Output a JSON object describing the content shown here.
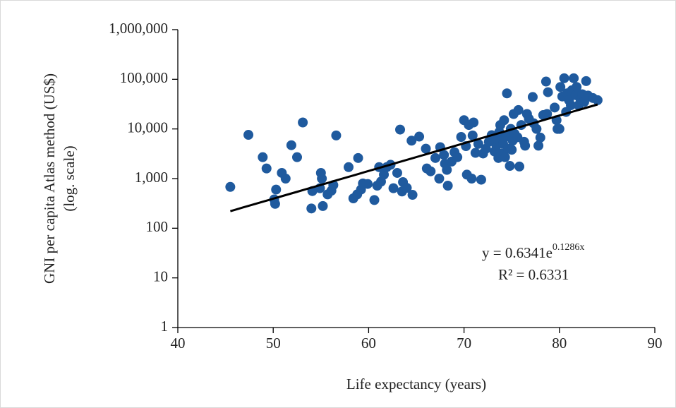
{
  "chart_data": {
    "type": "scatter",
    "xlabel": "Life expectancy (years)",
    "ylabel": "GNI per capita Atlas method (US$)",
    "ylabel_note": "(log. scale)",
    "xlim": [
      40,
      90
    ],
    "xticks": [
      40,
      50,
      60,
      70,
      80,
      90
    ],
    "ylim": [
      1,
      1000000
    ],
    "yticks": [
      1,
      10,
      100,
      {
        "value": 1000,
        "label": "1,000"
      },
      {
        "value": 10000,
        "label": "10,000"
      },
      {
        "value": 100000,
        "label": "100,000"
      },
      {
        "value": 1000000,
        "label": "1,000,000"
      }
    ],
    "log_y": true,
    "color": "#1f5a9e",
    "x": [
      45.5,
      47.4,
      48.9,
      49.3,
      50.1,
      50.2,
      50.3,
      50.9,
      51.3,
      51.9,
      52.5,
      53.1,
      54,
      54.1,
      54.9,
      55,
      55.1,
      55.2,
      55.7,
      56.1,
      56.3,
      56.6,
      57.9,
      58.4,
      58.8,
      58.9,
      59.2,
      59.4,
      59.9,
      60.6,
      60.9,
      61.1,
      61.3,
      61.6,
      61.9,
      62.3,
      62.6,
      63,
      63.3,
      63.5,
      63.6,
      64,
      64.5,
      64.6,
      65.3,
      66,
      66.1,
      66.5,
      67,
      67.4,
      67.5,
      67.9,
      68,
      68.2,
      68.3,
      68.7,
      69,
      69.3,
      69.7,
      70,
      70.2,
      70.3,
      70.5,
      70.8,
      70.9,
      71,
      71.2,
      71.5,
      71.8,
      72,
      72.3,
      72.6,
      72.9,
      73.2,
      73.4,
      73.5,
      73.6,
      73.7,
      73.8,
      73.9,
      74.1,
      74.2,
      74.3,
      74.4,
      74.5,
      74.6,
      74.8,
      74.9,
      75,
      75.1,
      75.2,
      75.3,
      75.6,
      75.7,
      75.8,
      76,
      76.3,
      76.4,
      76.6,
      76.8,
      77.2,
      77.3,
      77.6,
      77.8,
      78,
      78.3,
      78.6,
      78.7,
      78.8,
      79.5,
      79.7,
      79.8,
      80,
      80.1,
      80.3,
      80.5,
      80.7,
      80.8,
      81,
      81.2,
      81.3,
      81.5,
      81.7,
      81.8,
      82,
      82.2,
      82.4,
      82.6,
      82.8,
      83,
      83.5,
      84
    ],
    "y": [
      680,
      7600,
      2700,
      1600,
      380,
      310,
      600,
      1300,
      1000,
      4700,
      2700,
      13500,
      250,
      560,
      640,
      1300,
      1000,
      280,
      480,
      570,
      740,
      7400,
      1700,
      400,
      480,
      2600,
      600,
      800,
      780,
      370,
      720,
      1700,
      870,
      1200,
      1700,
      1900,
      640,
      1300,
      9700,
      550,
      850,
      650,
      5800,
      470,
      7000,
      4000,
      1600,
      1400,
      2600,
      1000,
      4300,
      3000,
      2000,
      1500,
      720,
      2200,
      3400,
      2700,
      6900,
      15000,
      4500,
      1200,
      12000,
      1000,
      7400,
      13500,
      3300,
      5000,
      950,
      3200,
      4000,
      5500,
      7500,
      3500,
      4600,
      6200,
      2600,
      8700,
      12000,
      3200,
      5000,
      15000,
      2700,
      7000,
      52000,
      4000,
      1800,
      10000,
      3800,
      5800,
      20000,
      8000,
      6800,
      24000,
      1750,
      12000,
      5500,
      4600,
      20000,
      16000,
      44000,
      13000,
      10000,
      4600,
      6700,
      19000,
      90000,
      20000,
      55000,
      27000,
      15000,
      10000,
      10000,
      70000,
      45000,
      105000,
      22000,
      52000,
      38000,
      30000,
      60000,
      105000,
      48000,
      70000,
      30000,
      40000,
      50000,
      35000,
      92000,
      47000,
      42000,
      38000
    ],
    "trendline": {
      "coef": 0.6341,
      "rate": 0.1286,
      "x_range": [
        45.5,
        84
      ],
      "color": "#000000",
      "equation": "y = 0.6341e",
      "exponent": "0.1286x",
      "r2_label": "R² = 0.6331"
    }
  }
}
